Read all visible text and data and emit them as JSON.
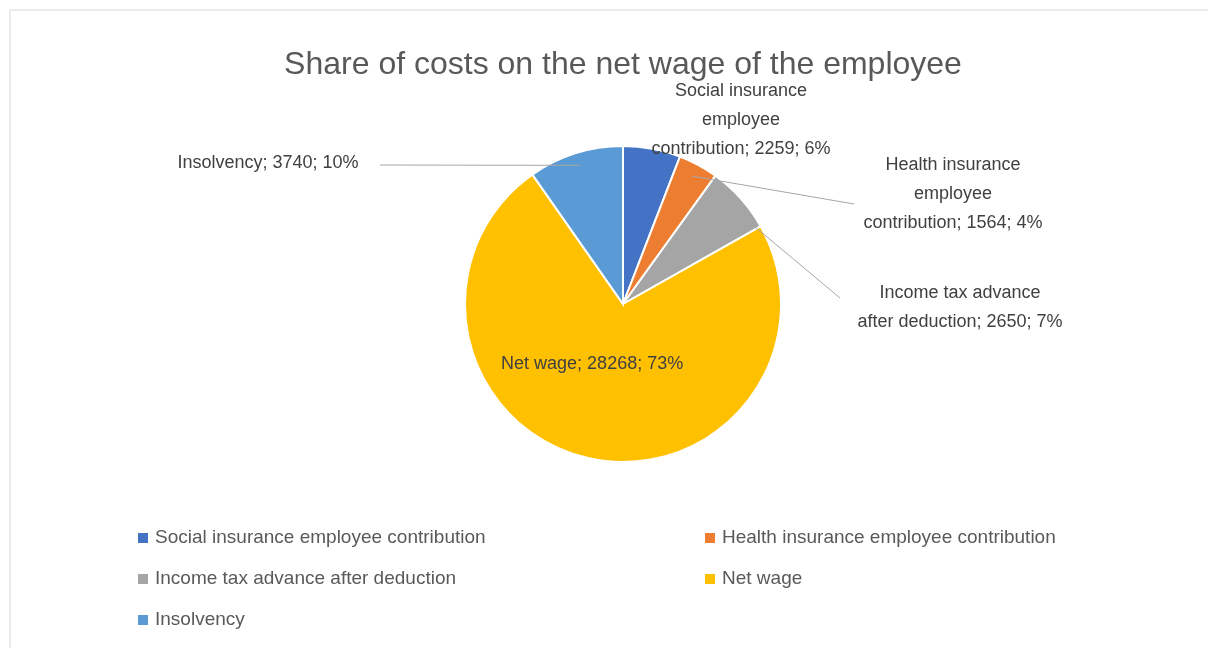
{
  "chart_data": {
    "type": "pie",
    "title": "Share of costs on the net wage of the employee",
    "categories": [
      "Social insurance employee contribution",
      "Health insurance employee contribution",
      "Income tax advance after deduction",
      "Net wage",
      "Insolvency"
    ],
    "values": [
      2259,
      1564,
      2650,
      28268,
      3740
    ],
    "colors": [
      "#4472c4",
      "#ed7d31",
      "#a5a5a5",
      "#ffc000",
      "#5b9bd5"
    ],
    "value_labels": [
      "Social insurance employee contribution; 2259; 6%",
      "Health insurance employee contribution; 1564; 4%",
      "Income tax advance after deduction; 2650; 7%",
      "Net wage; 28268; 73%",
      "Insolvency; 3740; 10%"
    ],
    "legend": "bottom"
  }
}
